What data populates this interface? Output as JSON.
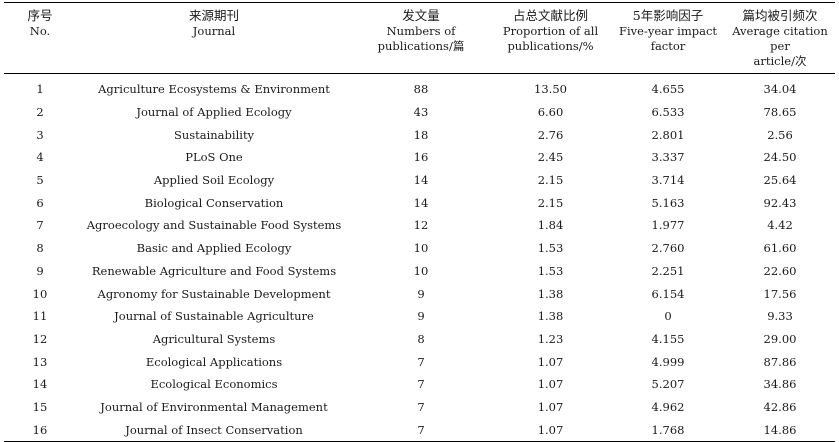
{
  "table": {
    "headers": [
      {
        "zh": "序号",
        "en": [
          "No."
        ]
      },
      {
        "zh": "来源期刊",
        "en": [
          "Journal"
        ]
      },
      {
        "zh": "发文量",
        "en": [
          "Numbers of",
          "publications/篇"
        ]
      },
      {
        "zh": "占总文献比例",
        "en": [
          "Proportion of all",
          "publications/%"
        ]
      },
      {
        "zh": "5年影响因子",
        "en": [
          "Five-year impact",
          "factor"
        ]
      },
      {
        "zh": "篇均被引频次",
        "en": [
          "Average citation per",
          "article/次"
        ]
      }
    ],
    "rows": [
      [
        "1",
        "Agriculture Ecosystems & Environment",
        "88",
        "13.50",
        "4.655",
        "34.04"
      ],
      [
        "2",
        "Journal of Applied Ecology",
        "43",
        "6.60",
        "6.533",
        "78.65"
      ],
      [
        "3",
        "Sustainability",
        "18",
        "2.76",
        "2.801",
        "2.56"
      ],
      [
        "4",
        "PLoS One",
        "16",
        "2.45",
        "3.337",
        "24.50"
      ],
      [
        "5",
        "Applied Soil Ecology",
        "14",
        "2.15",
        "3.714",
        "25.64"
      ],
      [
        "6",
        "Biological Conservation",
        "14",
        "2.15",
        "5.163",
        "92.43"
      ],
      [
        "7",
        "Agroecology and Sustainable Food Systems",
        "12",
        "1.84",
        "1.977",
        "4.42"
      ],
      [
        "8",
        "Basic and Applied Ecology",
        "10",
        "1.53",
        "2.760",
        "61.60"
      ],
      [
        "9",
        "Renewable Agriculture and Food Systems",
        "10",
        "1.53",
        "2.251",
        "22.60"
      ],
      [
        "10",
        "Agronomy for Sustainable Development",
        "9",
        "1.38",
        "6.154",
        "17.56"
      ],
      [
        "11",
        "Journal of Sustainable Agriculture",
        "9",
        "1.38",
        "0",
        "9.33"
      ],
      [
        "12",
        "Agricultural Systems",
        "8",
        "1.23",
        "4.155",
        "29.00"
      ],
      [
        "13",
        "Ecological Applications",
        "7",
        "1.07",
        "4.999",
        "87.86"
      ],
      [
        "14",
        "Ecological Economics",
        "7",
        "1.07",
        "5.207",
        "34.86"
      ],
      [
        "15",
        "Journal of Environmental Management",
        "7",
        "1.07",
        "4.962",
        "42.86"
      ],
      [
        "16",
        "Journal of Insect Conservation",
        "7",
        "1.07",
        "1.768",
        "14.86"
      ]
    ]
  }
}
